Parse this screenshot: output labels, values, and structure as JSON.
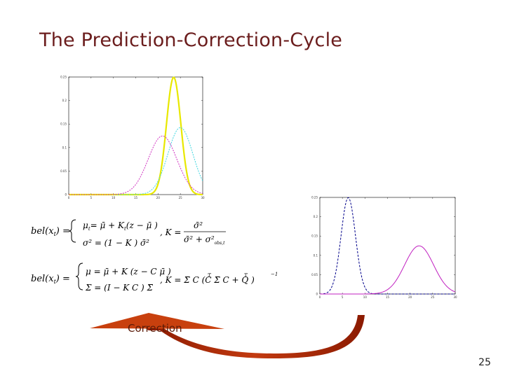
{
  "slide": {
    "title": "The Prediction-Correction-Cycle",
    "number": "25",
    "arrow_label": "Correction"
  },
  "chart_data": [
    {
      "type": "line",
      "ylim": [
        0,
        0.25
      ],
      "xlim": [
        0,
        30
      ],
      "yticks": [
        "0.25",
        "0.2",
        "0.15",
        "0.1",
        "0.05",
        "0"
      ],
      "xticks": [
        "0",
        "5",
        "10",
        "15",
        "20",
        "25",
        "30"
      ],
      "series": [
        {
          "color": "#e8e800",
          "mu": 23.5,
          "sigma": 1.6
        },
        {
          "color": "#3fd6e0",
          "mu": 25,
          "sigma": 2.8
        },
        {
          "color": "#d030c0",
          "mu": 21,
          "sigma": 3.2
        }
      ]
    },
    {
      "type": "line",
      "ylim": [
        0,
        0.25
      ],
      "xlim": [
        0,
        30
      ],
      "yticks": [
        "0.25",
        "0.2",
        "0.15",
        "0.1",
        "0.05",
        "0"
      ],
      "xticks": [
        "0",
        "5",
        "10",
        "15",
        "20",
        "25",
        "30"
      ],
      "series": [
        {
          "color": "#00008b",
          "mu": 6.3,
          "sigma": 1.6,
          "dash": true
        },
        {
          "color": "#c020c0",
          "mu": 22,
          "sigma": 3.2
        }
      ]
    }
  ],
  "equations": {
    "corr1": {
      "lhs": "bel(x",
      "lhs_sub": "t",
      "lhs_end": ") =",
      "mu_line": "μ",
      "mu_rest": "= μ̄ + K",
      "mu_rest2": "(z − μ̄ )",
      "var_line": "σ² = (1 − K ) σ̄²",
      "k": ", K =",
      "k_num": "σ̄²",
      "k_den": "σ̄² + σ²",
      "k_den_sub": "obs,t"
    },
    "corr2": {
      "lhs": "bel(x",
      "lhs_sub": "t",
      "lhs_end": ") =",
      "mu_line": "μ = μ̄ + K (z − C μ̄ )",
      "sigma_line": "Σ = (I − K C ) Σ̄",
      "k": ", K = Σ̄ C (C Σ̄ C + Q )",
      "k_sup1": "T",
      "k_sup2": "T",
      "k_sup3": "−1"
    }
  }
}
